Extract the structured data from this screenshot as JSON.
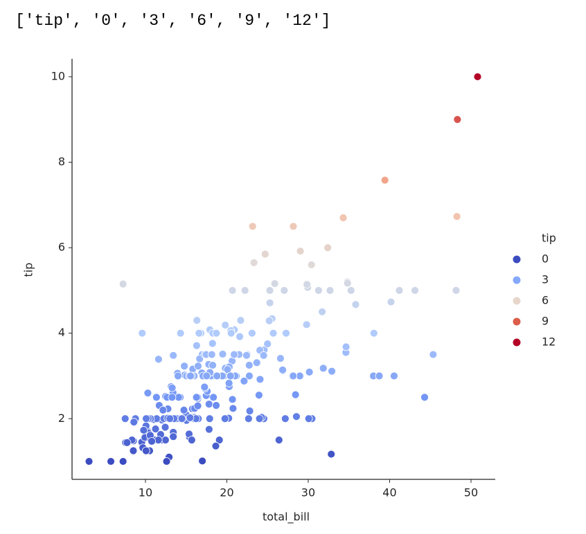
{
  "output_text": "['tip', '0', '3', '6', '9', '12']",
  "chart_data": {
    "type": "scatter",
    "x_label": "total_bill",
    "y_label": "tip",
    "palette": [
      "#3b4cc0",
      "#7396f5",
      "#b0cbfc",
      "#dddcdc",
      "#f6bfa6",
      "#ea7b60",
      "#b40426"
    ],
    "xlim": [
      0.98,
      52.98
    ],
    "xticks": [
      10,
      20,
      30,
      40,
      50
    ],
    "ylim": [
      0.58,
      10.42
    ],
    "yticks": [
      2,
      4,
      6,
      8,
      10
    ],
    "legend": {
      "title": "tip",
      "entries": [
        {
          "name": "0",
          "color": "#3b4cc0"
        },
        {
          "name": "3",
          "color": "#85a8fc"
        },
        {
          "name": "6",
          "color": "#e8d6cc"
        },
        {
          "name": "9",
          "color": "#dc5d4a"
        },
        {
          "name": "12",
          "color": "#b40426"
        }
      ]
    },
    "x": [
      16.99,
      10.34,
      21.01,
      23.68,
      24.59,
      25.29,
      8.77,
      26.88,
      15.04,
      14.78,
      10.27,
      35.26,
      15.42,
      18.43,
      14.83,
      21.58,
      10.33,
      16.29,
      16.97,
      20.65,
      17.92,
      20.29,
      15.77,
      39.42,
      19.82,
      17.81,
      13.37,
      12.69,
      21.7,
      19.65,
      9.55,
      18.35,
      15.06,
      20.69,
      17.78,
      24.06,
      16.31,
      16.93,
      18.69,
      31.27,
      16.04,
      17.46,
      13.94,
      9.68,
      30.4,
      18.29,
      22.23,
      32.4,
      28.55,
      18.04,
      12.54,
      10.29,
      34.81,
      9.94,
      25.56,
      19.49,
      38.01,
      26.41,
      11.24,
      48.27,
      20.29,
      13.81,
      11.02,
      18.29,
      17.59,
      20.08,
      16.45,
      3.07,
      20.23,
      15.01,
      12.02,
      17.07,
      26.86,
      25.28,
      14.73,
      10.51,
      17.92,
      27.2,
      22.76,
      17.29,
      19.44,
      16.66,
      10.07,
      32.68,
      15.98,
      34.83,
      13.03,
      18.28,
      24.71,
      21.16,
      28.97,
      22.49,
      5.75,
      16.32,
      22.75,
      40.17,
      27.28,
      12.03,
      21.01,
      12.46,
      11.35,
      15.38,
      44.3,
      22.42,
      20.92,
      15.36,
      20.49,
      25.21,
      18.24,
      14.31,
      14.0,
      7.25,
      38.07,
      23.95,
      25.71,
      17.31,
      29.93,
      10.65,
      12.43,
      24.08,
      11.69,
      13.42,
      14.26,
      15.95,
      12.48,
      29.8,
      8.52,
      14.52,
      11.38,
      22.82,
      19.08,
      20.27,
      11.17,
      12.26,
      18.26,
      8.51,
      10.33,
      14.15,
      16.0,
      13.16,
      17.47,
      34.3,
      41.19,
      27.05,
      16.43,
      8.35,
      18.64,
      11.87,
      9.78,
      7.51,
      14.07,
      13.13,
      17.26,
      24.55,
      19.77,
      29.85,
      48.17,
      25.0,
      13.39,
      16.49,
      21.5,
      12.66,
      16.21,
      13.81,
      17.51,
      24.52,
      20.76,
      31.71,
      10.59,
      10.63,
      50.81,
      15.81,
      7.25,
      31.85,
      16.82,
      32.9,
      17.89,
      14.48,
      9.6,
      34.63,
      34.65,
      23.33,
      45.35,
      23.17,
      40.55,
      20.69,
      20.9,
      30.46,
      18.15,
      23.1,
      15.69,
      19.81,
      28.44,
      15.48,
      16.58,
      7.56,
      10.34,
      43.11,
      13.0,
      13.51,
      18.71,
      12.74,
      13.0,
      16.4,
      20.53,
      16.47,
      26.59,
      38.73,
      24.27,
      12.76,
      30.06,
      25.89,
      48.33,
      13.27,
      28.17,
      12.9,
      28.15,
      11.59,
      7.74,
      30.14,
      12.16,
      13.42,
      8.58,
      15.98,
      13.42,
      16.27,
      10.09,
      20.45,
      13.28,
      22.12,
      24.01,
      15.69,
      11.61,
      10.77,
      15.53,
      10.07,
      12.6,
      32.83,
      35.83,
      29.03,
      27.18,
      22.67,
      17.82,
      18.78
    ],
    "y": [
      1.01,
      1.66,
      3.5,
      3.31,
      3.61,
      4.71,
      2.0,
      3.12,
      1.96,
      3.23,
      1.71,
      5.0,
      1.57,
      3.0,
      3.02,
      3.92,
      1.67,
      3.71,
      3.5,
      3.35,
      4.08,
      2.75,
      2.23,
      7.58,
      3.18,
      2.34,
      2.0,
      2.0,
      4.3,
      3.0,
      1.45,
      2.5,
      3.0,
      2.45,
      3.27,
      3.6,
      2.0,
      3.07,
      2.31,
      5.0,
      2.24,
      2.54,
      3.06,
      1.32,
      5.6,
      3.0,
      5.0,
      6.0,
      2.05,
      3.0,
      2.5,
      2.6,
      5.2,
      1.56,
      4.34,
      3.51,
      3.0,
      1.5,
      1.76,
      6.73,
      3.21,
      2.0,
      1.98,
      3.76,
      2.64,
      3.15,
      2.47,
      1.0,
      2.01,
      2.09,
      1.97,
      3.0,
      3.14,
      5.0,
      2.2,
      1.25,
      3.08,
      4.0,
      3.0,
      2.71,
      3.0,
      3.4,
      1.83,
      5.0,
      2.03,
      5.17,
      2.0,
      4.0,
      5.85,
      3.0,
      3.0,
      3.5,
      1.0,
      4.3,
      3.25,
      4.73,
      4.0,
      1.5,
      3.0,
      1.5,
      2.5,
      3.0,
      2.5,
      3.48,
      4.08,
      1.64,
      4.06,
      4.29,
      3.76,
      4.0,
      3.0,
      1.0,
      4.0,
      2.55,
      4.0,
      3.5,
      5.07,
      1.5,
      1.8,
      2.92,
      2.31,
      1.68,
      2.5,
      2.0,
      2.52,
      4.2,
      1.48,
      2.0,
      2.0,
      2.18,
      1.5,
      2.83,
      1.5,
      2.0,
      3.25,
      1.25,
      2.0,
      2.0,
      2.0,
      2.75,
      3.5,
      6.7,
      5.0,
      5.0,
      2.3,
      1.5,
      1.36,
      1.63,
      1.73,
      2.0,
      2.5,
      2.0,
      2.74,
      2.0,
      2.0,
      5.14,
      5.0,
      3.75,
      2.61,
      2.0,
      3.5,
      2.5,
      2.0,
      2.0,
      3.0,
      3.48,
      2.24,
      4.5,
      1.61,
      2.0,
      10.0,
      3.16,
      5.15,
      3.18,
      4.0,
      3.11,
      2.0,
      2.0,
      4.0,
      3.55,
      3.68,
      5.65,
      3.5,
      6.5,
      3.0,
      5.0,
      3.5,
      2.0,
      3.5,
      4.0,
      1.5,
      4.19,
      2.56,
      2.02,
      4.0,
      1.44,
      2.0,
      5.0,
      2.0,
      2.0,
      4.0,
      2.01,
      2.0,
      2.5,
      4.0,
      3.23,
      3.41,
      3.0,
      2.03,
      2.23,
      2.0,
      5.16,
      9.0,
      2.5,
      6.5,
      1.1,
      3.0,
      1.5,
      1.44,
      3.09,
      2.2,
      3.48,
      1.92,
      3.0,
      1.58,
      2.5,
      2.0,
      3.0,
      2.72,
      2.88,
      2.0,
      3.0,
      3.39,
      1.47,
      3.0,
      1.25,
      1.0,
      1.17,
      4.67,
      5.92,
      2.0,
      2.0,
      1.75,
      3.0
    ]
  }
}
